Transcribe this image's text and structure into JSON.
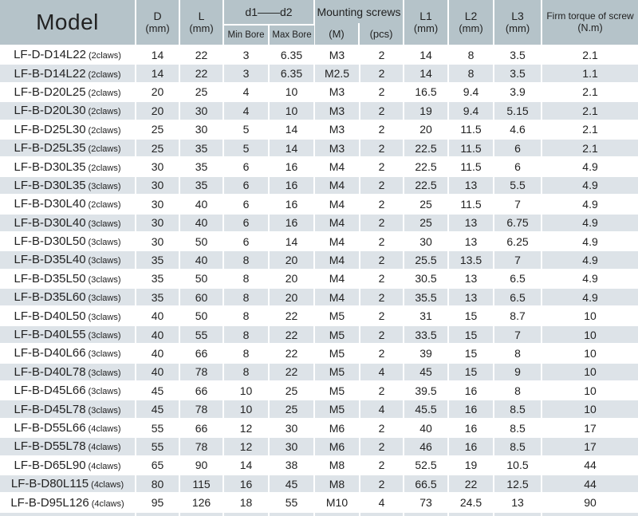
{
  "colors": {
    "header_bg": "#b5c3c9",
    "stripe_bg": "#dde3e8",
    "row_bg": "#ffffff",
    "text": "#222222"
  },
  "header": {
    "model": "Model",
    "d": {
      "line1": "D",
      "line2": "(mm)"
    },
    "l": {
      "line1": "L",
      "line2": "(mm)"
    },
    "d1d2": {
      "group": "d1——d2",
      "min": "Min Bore",
      "max": "Max Bore"
    },
    "mounting": {
      "group": "Mounting screws",
      "m": "(M)",
      "pcs": "(pcs)"
    },
    "l1": {
      "line1": "L1",
      "line2": "(mm)"
    },
    "l2": {
      "line1": "L2",
      "line2": "(mm)"
    },
    "l3": {
      "line1": "L3",
      "line2": "(mm)"
    },
    "torque": {
      "line1": "Firm torque of screw",
      "line2": "(N.m)"
    }
  },
  "rows": [
    {
      "model": "LF-D-D14L22",
      "claws": "(2claws)",
      "d": "14",
      "l": "22",
      "min_bore": "3",
      "max_bore": "6.35",
      "m": "M3",
      "pcs": "2",
      "l1": "14",
      "l2": "8",
      "l3": "3.5",
      "torque": "2.1"
    },
    {
      "model": "LF-B-D14L22",
      "claws": "(2claws)",
      "d": "14",
      "l": "22",
      "min_bore": "3",
      "max_bore": "6.35",
      "m": "M2.5",
      "pcs": "2",
      "l1": "14",
      "l2": "8",
      "l3": "3.5",
      "torque": "1.1"
    },
    {
      "model": "LF-B-D20L25",
      "claws": "(2claws)",
      "d": "20",
      "l": "25",
      "min_bore": "4",
      "max_bore": "10",
      "m": "M3",
      "pcs": "2",
      "l1": "16.5",
      "l2": "9.4",
      "l3": "3.9",
      "torque": "2.1"
    },
    {
      "model": "LF-B-D20L30",
      "claws": "(2claws)",
      "d": "20",
      "l": "30",
      "min_bore": "4",
      "max_bore": "10",
      "m": "M3",
      "pcs": "2",
      "l1": "19",
      "l2": "9.4",
      "l3": "5.15",
      "torque": "2.1"
    },
    {
      "model": "LF-B-D25L30",
      "claws": "(2claws)",
      "d": "25",
      "l": "30",
      "min_bore": "5",
      "max_bore": "14",
      "m": "M3",
      "pcs": "2",
      "l1": "20",
      "l2": "11.5",
      "l3": "4.6",
      "torque": "2.1"
    },
    {
      "model": "LF-B-D25L35",
      "claws": "(2claws)",
      "d": "25",
      "l": "35",
      "min_bore": "5",
      "max_bore": "14",
      "m": "M3",
      "pcs": "2",
      "l1": "22.5",
      "l2": "11.5",
      "l3": "6",
      "torque": "2.1"
    },
    {
      "model": "LF-B-D30L35",
      "claws": "(2claws)",
      "d": "30",
      "l": "35",
      "min_bore": "6",
      "max_bore": "16",
      "m": "M4",
      "pcs": "2",
      "l1": "22.5",
      "l2": "11.5",
      "l3": "6",
      "torque": "4.9"
    },
    {
      "model": "LF-B-D30L35",
      "claws": "(3claws)",
      "d": "30",
      "l": "35",
      "min_bore": "6",
      "max_bore": "16",
      "m": "M4",
      "pcs": "2",
      "l1": "22.5",
      "l2": "13",
      "l3": "5.5",
      "torque": "4.9"
    },
    {
      "model": "LF-B-D30L40",
      "claws": "(2claws)",
      "d": "30",
      "l": "40",
      "min_bore": "6",
      "max_bore": "16",
      "m": "M4",
      "pcs": "2",
      "l1": "25",
      "l2": "11.5",
      "l3": "7",
      "torque": "4.9"
    },
    {
      "model": "LF-B-D30L40",
      "claws": "(3claws)",
      "d": "30",
      "l": "40",
      "min_bore": "6",
      "max_bore": "16",
      "m": "M4",
      "pcs": "2",
      "l1": "25",
      "l2": "13",
      "l3": "6.75",
      "torque": "4.9"
    },
    {
      "model": "LF-B-D30L50",
      "claws": "(3claws)",
      "d": "30",
      "l": "50",
      "min_bore": "6",
      "max_bore": "14",
      "m": "M4",
      "pcs": "2",
      "l1": "30",
      "l2": "13",
      "l3": "6.25",
      "torque": "4.9"
    },
    {
      "model": "LF-B-D35L40",
      "claws": "(3claws)",
      "d": "35",
      "l": "40",
      "min_bore": "8",
      "max_bore": "20",
      "m": "M4",
      "pcs": "2",
      "l1": "25.5",
      "l2": "13.5",
      "l3": "7",
      "torque": "4.9"
    },
    {
      "model": "LF-B-D35L50",
      "claws": "(3claws)",
      "d": "35",
      "l": "50",
      "min_bore": "8",
      "max_bore": "20",
      "m": "M4",
      "pcs": "2",
      "l1": "30.5",
      "l2": "13",
      "l3": "6.5",
      "torque": "4.9"
    },
    {
      "model": "LF-B-D35L60",
      "claws": "(3claws)",
      "d": "35",
      "l": "60",
      "min_bore": "8",
      "max_bore": "20",
      "m": "M4",
      "pcs": "2",
      "l1": "35.5",
      "l2": "13",
      "l3": "6.5",
      "torque": "4.9"
    },
    {
      "model": "LF-B-D40L50",
      "claws": "(3claws)",
      "d": "40",
      "l": "50",
      "min_bore": "8",
      "max_bore": "22",
      "m": "M5",
      "pcs": "2",
      "l1": "31",
      "l2": "15",
      "l3": "8.7",
      "torque": "10"
    },
    {
      "model": "LF-B-D40L55",
      "claws": "(3claws)",
      "d": "40",
      "l": "55",
      "min_bore": "8",
      "max_bore": "22",
      "m": "M5",
      "pcs": "2",
      "l1": "33.5",
      "l2": "15",
      "l3": "7",
      "torque": "10"
    },
    {
      "model": "LF-B-D40L66",
      "claws": "(3claws)",
      "d": "40",
      "l": "66",
      "min_bore": "8",
      "max_bore": "22",
      "m": "M5",
      "pcs": "2",
      "l1": "39",
      "l2": "15",
      "l3": "8",
      "torque": "10"
    },
    {
      "model": "LF-B-D40L78",
      "claws": "(3claws)",
      "d": "40",
      "l": "78",
      "min_bore": "8",
      "max_bore": "22",
      "m": "M5",
      "pcs": "4",
      "l1": "45",
      "l2": "15",
      "l3": "9",
      "torque": "10"
    },
    {
      "model": "LF-B-D45L66",
      "claws": "(3claws)",
      "d": "45",
      "l": "66",
      "min_bore": "10",
      "max_bore": "25",
      "m": "M5",
      "pcs": "2",
      "l1": "39.5",
      "l2": "16",
      "l3": "8",
      "torque": "10"
    },
    {
      "model": "LF-B-D45L78",
      "claws": "(3claws)",
      "d": "45",
      "l": "78",
      "min_bore": "10",
      "max_bore": "25",
      "m": "M5",
      "pcs": "4",
      "l1": "45.5",
      "l2": "16",
      "l3": "8.5",
      "torque": "10"
    },
    {
      "model": "LF-B-D55L66",
      "claws": "(4claws)",
      "d": "55",
      "l": "66",
      "min_bore": "12",
      "max_bore": "30",
      "m": "M6",
      "pcs": "2",
      "l1": "40",
      "l2": "16",
      "l3": "8.5",
      "torque": "17"
    },
    {
      "model": "LF-B-D55L78",
      "claws": "(4claws)",
      "d": "55",
      "l": "78",
      "min_bore": "12",
      "max_bore": "30",
      "m": "M6",
      "pcs": "2",
      "l1": "46",
      "l2": "16",
      "l3": "8.5",
      "torque": "17"
    },
    {
      "model": "LF-B-D65L90",
      "claws": "(4claws)",
      "d": "65",
      "l": "90",
      "min_bore": "14",
      "max_bore": "38",
      "m": "M8",
      "pcs": "2",
      "l1": "52.5",
      "l2": "19",
      "l3": "10.5",
      "torque": "44"
    },
    {
      "model": "LF-B-D80L115",
      "claws": "(4claws)",
      "d": "80",
      "l": "115",
      "min_bore": "16",
      "max_bore": "45",
      "m": "M8",
      "pcs": "2",
      "l1": "66.5",
      "l2": "22",
      "l3": "12.5",
      "torque": "44"
    },
    {
      "model": "LF-B-D95L126",
      "claws": "(4claws)",
      "d": "95",
      "l": "126",
      "min_bore": "18",
      "max_bore": "55",
      "m": "M10",
      "pcs": "4",
      "l1": "73",
      "l2": "24.5",
      "l3": "13",
      "torque": "90"
    }
  ]
}
